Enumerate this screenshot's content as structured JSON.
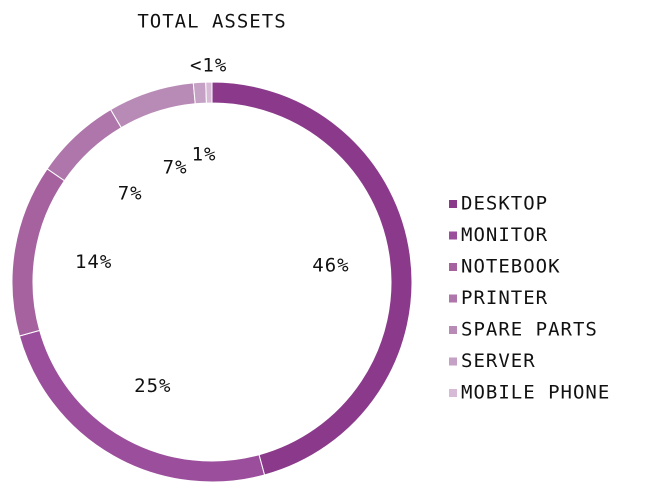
{
  "chart_data": {
    "type": "donut",
    "title": "TOTAL ASSETS",
    "categories": [
      "DESKTOP",
      "MONITOR",
      "NOTEBOOK",
      "PRINTER",
      "SPARE PARTS",
      "SERVER",
      "MOBILE PHONE"
    ],
    "values": [
      46,
      25,
      14,
      7,
      7,
      1,
      0.5
    ],
    "value_labels": [
      "46%",
      "25%",
      "14%",
      "7%",
      "7%",
      "1%",
      "<1%"
    ],
    "colors": [
      "#8b3a8b",
      "#9b4e9b",
      "#a5629f",
      "#ae76aa",
      "#b88bb6",
      "#c5a1c5",
      "#d6bad6"
    ],
    "legend": "right"
  }
}
